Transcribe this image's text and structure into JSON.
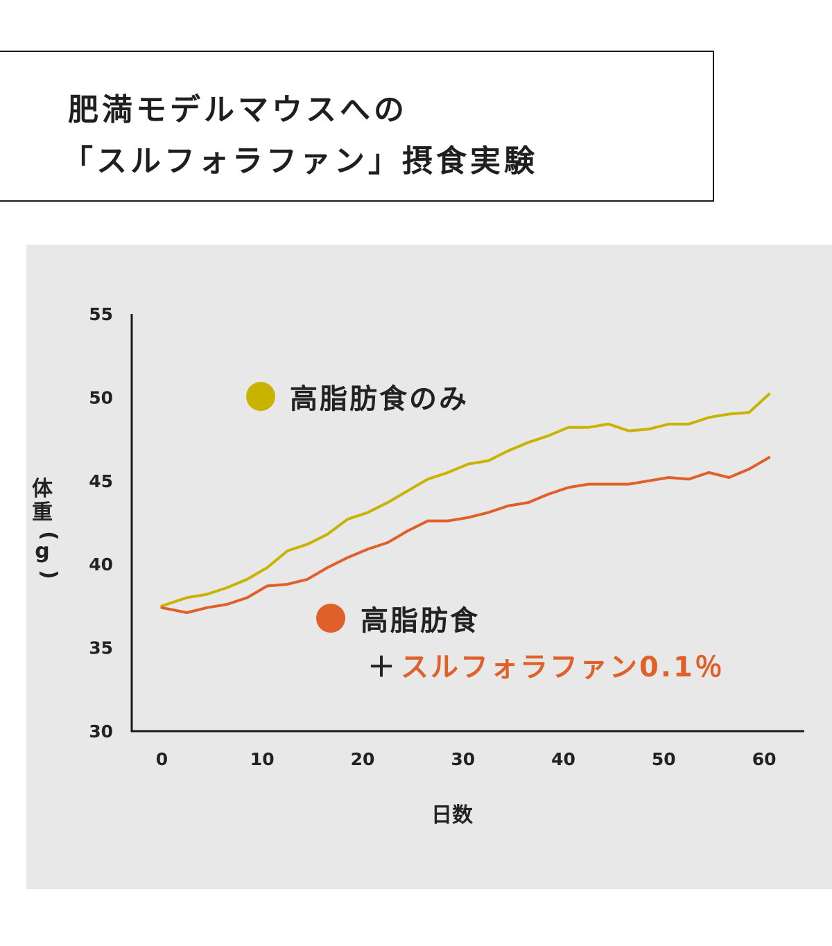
{
  "title": {
    "line1": "肥満モデルマウスへの",
    "line2": "「スルフォラファン」摂食実験"
  },
  "chart_data": {
    "type": "line",
    "xlabel": "日数",
    "ylabel": "体重(g)",
    "xlim": [
      -3,
      64
    ],
    "ylim": [
      30,
      55
    ],
    "x_ticks": [
      0,
      10,
      20,
      30,
      40,
      50,
      60
    ],
    "y_ticks": [
      30,
      35,
      40,
      45,
      50,
      55
    ],
    "grid": false,
    "series": [
      {
        "name": "高脂肪食のみ",
        "color": "#c8b400",
        "x": [
          0,
          2.5,
          4.5,
          6.5,
          8.5,
          10.5,
          12.5,
          14.5,
          16.5,
          18.5,
          20.5,
          22.5,
          24.5,
          26.5,
          28.5,
          30.5,
          32.5,
          34.5,
          36.5,
          38.5,
          40.5,
          42.5,
          44.5,
          46.5,
          48.5,
          50.5,
          52.5,
          54.5,
          56.5,
          58.5,
          60.5
        ],
        "y": [
          37.5,
          38.0,
          38.2,
          38.6,
          39.1,
          39.8,
          40.8,
          41.2,
          41.8,
          42.7,
          43.1,
          43.7,
          44.4,
          45.1,
          45.5,
          46.0,
          46.2,
          46.8,
          47.3,
          47.7,
          48.2,
          48.2,
          48.4,
          48.0,
          48.1,
          48.4,
          48.4,
          48.8,
          49.0,
          49.1,
          50.2
        ]
      },
      {
        "name": "高脂肪食",
        "name_suffix": "＋",
        "name_line2": "スルフォラファン0.1％",
        "color": "#e0602a",
        "x": [
          0,
          2.5,
          4.5,
          6.5,
          8.5,
          10.5,
          12.5,
          14.5,
          16.5,
          18.5,
          20.5,
          22.5,
          24.5,
          26.5,
          28.5,
          30.5,
          32.5,
          34.5,
          36.5,
          38.5,
          40.5,
          42.5,
          44.5,
          46.5,
          48.5,
          50.5,
          52.5,
          54.5,
          56.5,
          58.5,
          60.5
        ],
        "y": [
          37.4,
          37.1,
          37.4,
          37.6,
          38.0,
          38.7,
          38.8,
          39.1,
          39.8,
          40.4,
          40.9,
          41.3,
          42.0,
          42.6,
          42.6,
          42.8,
          43.1,
          43.5,
          43.7,
          44.2,
          44.6,
          44.8,
          44.8,
          44.8,
          45.0,
          45.2,
          45.1,
          45.5,
          45.2,
          45.7,
          46.4
        ]
      }
    ]
  }
}
